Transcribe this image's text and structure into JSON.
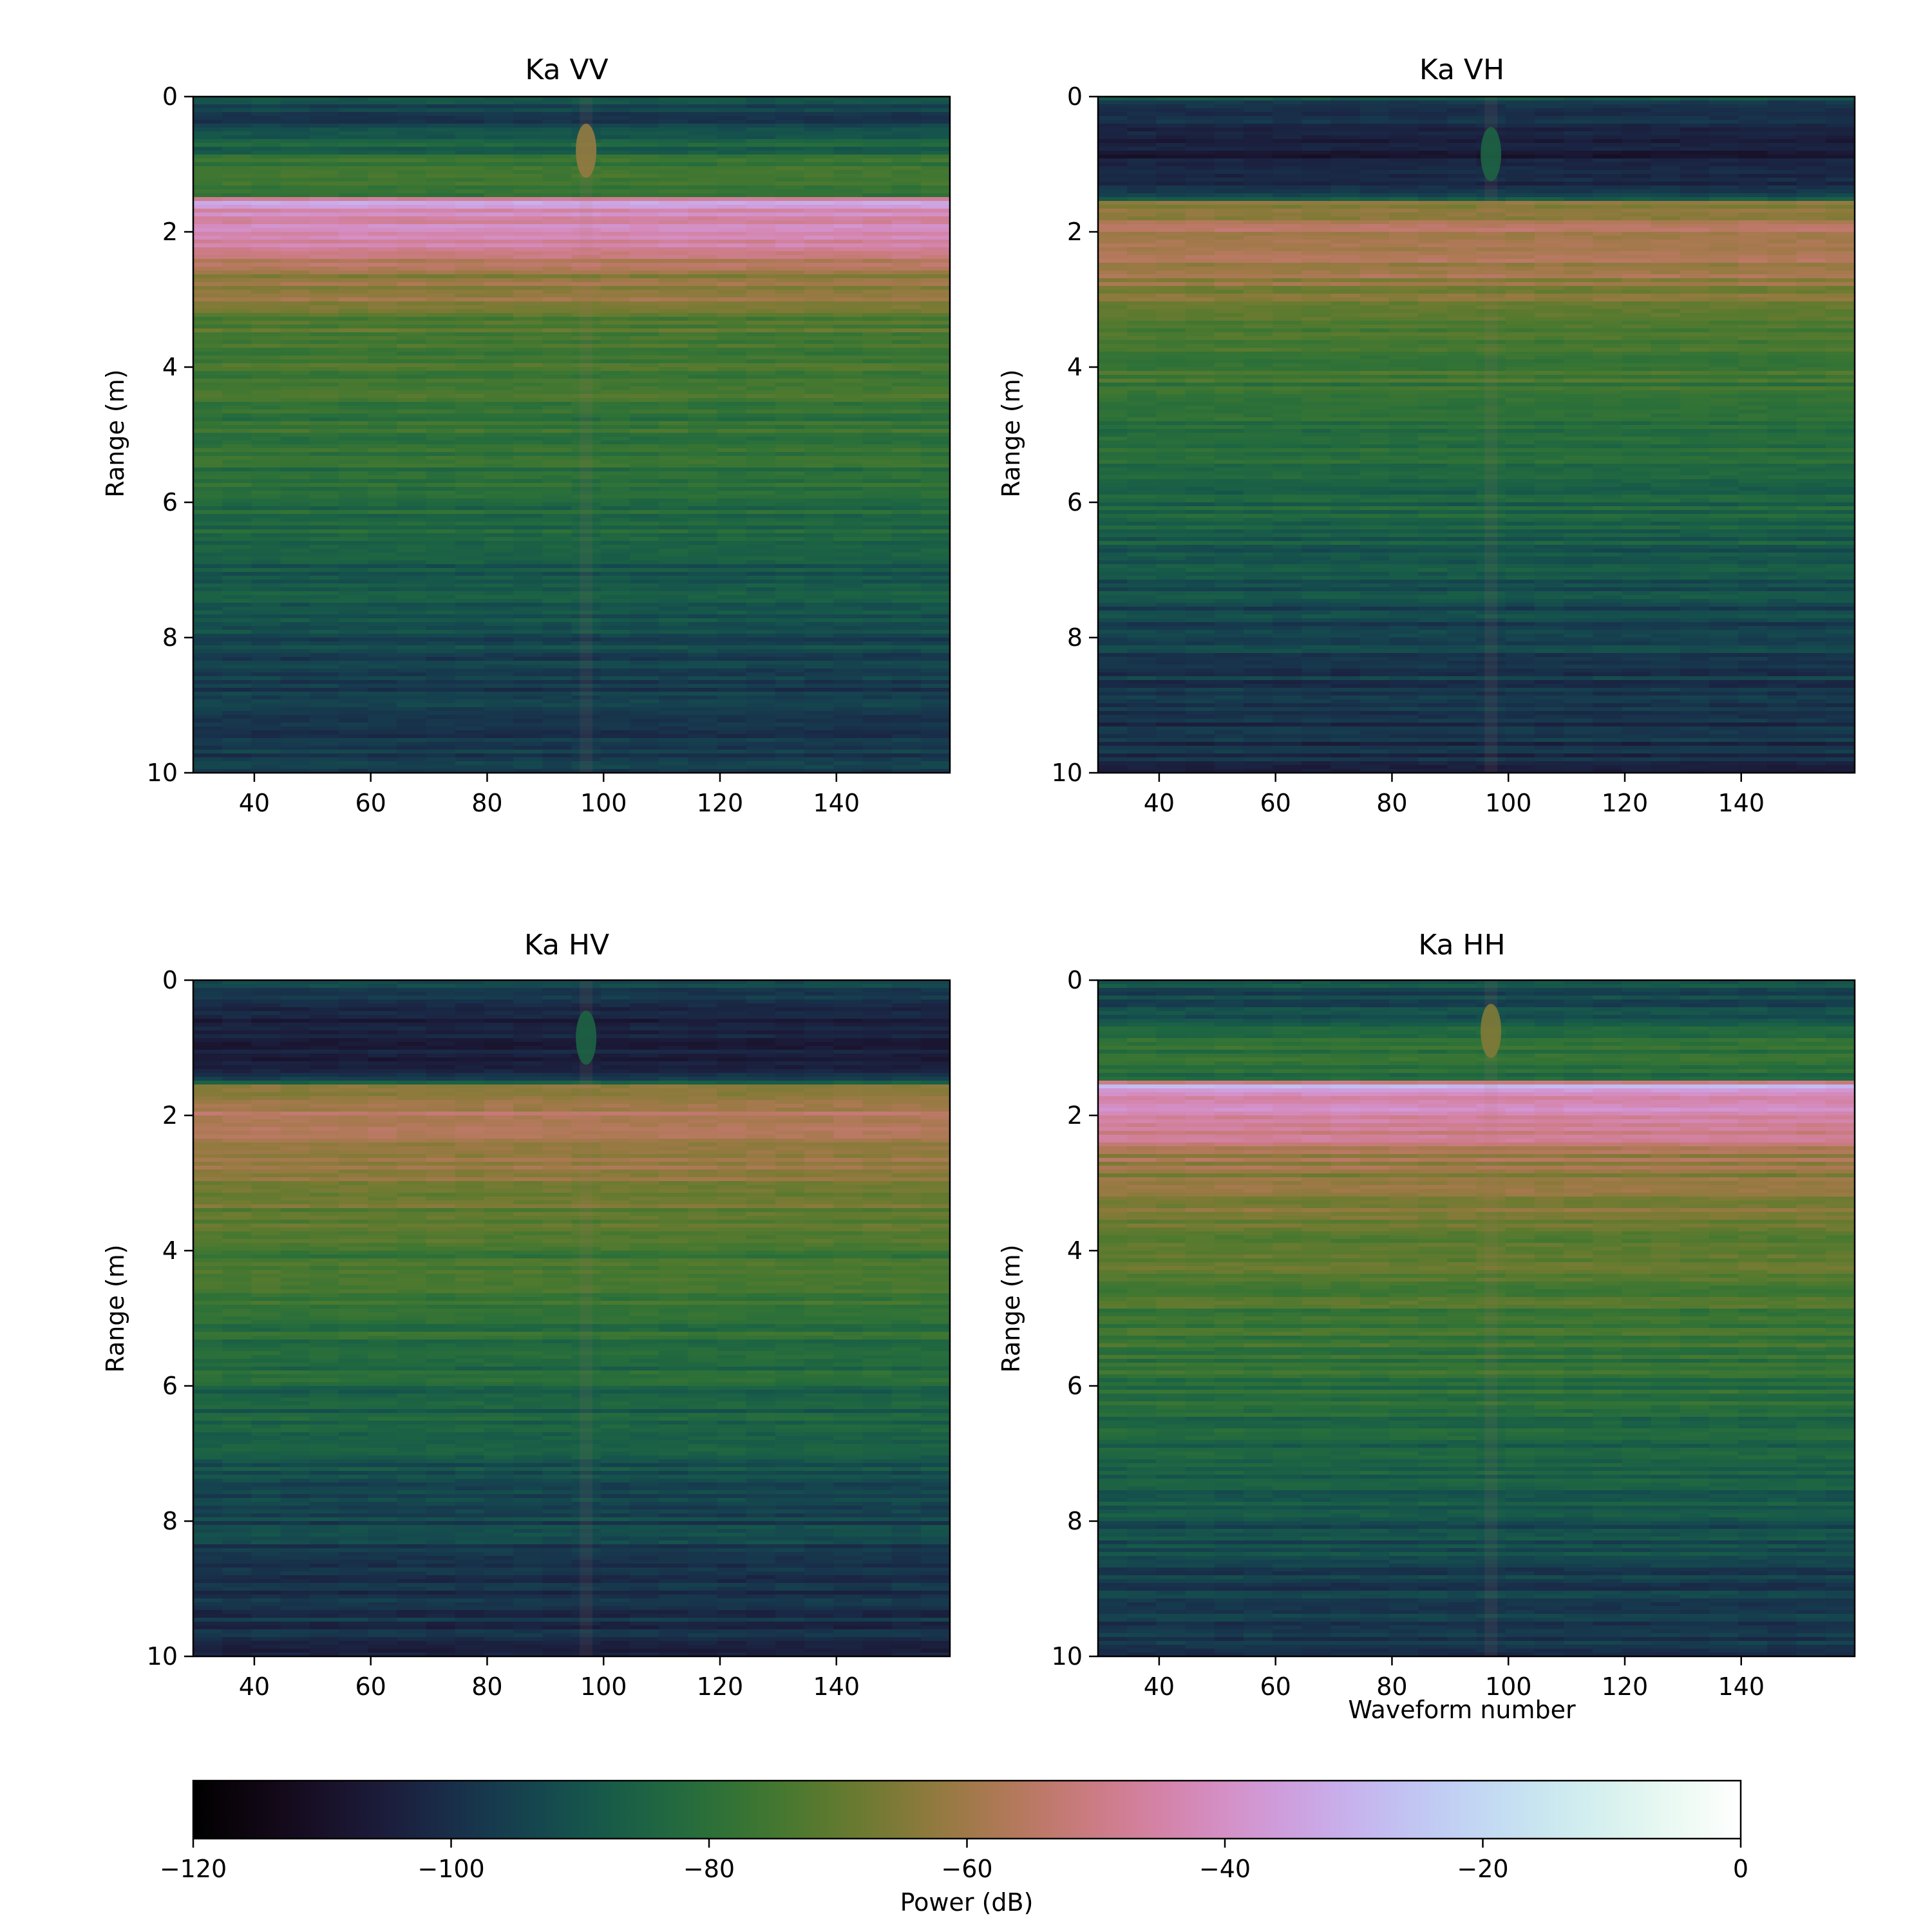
{
  "figure_title": "",
  "colorbar": {
    "label": "Power (dB)",
    "colormap": "cubehelix",
    "vmin": -120,
    "vmax": 0,
    "ticks": [
      -120,
      -100,
      -80,
      -60,
      -40,
      -20,
      0
    ],
    "tick_labels": [
      "−120",
      "−100",
      "−80",
      "−60",
      "−40",
      "−20",
      "0"
    ]
  },
  "chart_data": [
    {
      "type": "heatmap",
      "title": "Ka VV",
      "xlabel": "",
      "ylabel": "Range (m)",
      "xlim": [
        29.5,
        159.5
      ],
      "ylim": [
        10,
        0
      ],
      "xticks": [
        40,
        60,
        80,
        100,
        120,
        140
      ],
      "yticks": [
        0,
        2,
        4,
        6,
        8,
        10
      ],
      "range_profile_db": [
        [
          0.0,
          -90
        ],
        [
          0.2,
          -97
        ],
        [
          0.5,
          -95
        ],
        [
          0.9,
          -80
        ],
        [
          1.2,
          -77
        ],
        [
          1.45,
          -82
        ],
        [
          1.55,
          -28
        ],
        [
          1.7,
          -42
        ],
        [
          2.0,
          -43
        ],
        [
          2.3,
          -48
        ],
        [
          2.6,
          -62
        ],
        [
          3.0,
          -62
        ],
        [
          3.3,
          -72
        ],
        [
          4.0,
          -75
        ],
        [
          5.0,
          -79
        ],
        [
          6.0,
          -82
        ],
        [
          7.0,
          -88
        ],
        [
          8.0,
          -93
        ],
        [
          9.0,
          -98
        ],
        [
          10.0,
          -98
        ]
      ],
      "target": {
        "waveform": 97,
        "range_m": 0.8,
        "power_db": -62
      }
    },
    {
      "type": "heatmap",
      "title": "Ka VH",
      "xlabel": "",
      "ylabel": "Range (m)",
      "xlim": [
        29.5,
        159.5
      ],
      "ylim": [
        10,
        0
      ],
      "xticks": [
        40,
        60,
        80,
        100,
        120,
        140
      ],
      "yticks": [
        0,
        2,
        4,
        6,
        8,
        10
      ],
      "range_profile_db": [
        [
          0.0,
          -92
        ],
        [
          0.3,
          -100
        ],
        [
          0.6,
          -106
        ],
        [
          1.0,
          -106
        ],
        [
          1.3,
          -102
        ],
        [
          1.5,
          -96
        ],
        [
          1.55,
          -62
        ],
        [
          2.0,
          -58
        ],
        [
          2.6,
          -60
        ],
        [
          3.0,
          -68
        ],
        [
          4.0,
          -76
        ],
        [
          5.0,
          -80
        ],
        [
          6.0,
          -85
        ],
        [
          7.0,
          -90
        ],
        [
          8.0,
          -95
        ],
        [
          9.0,
          -99
        ],
        [
          10.0,
          -101
        ]
      ],
      "target": {
        "waveform": 97,
        "range_m": 0.85,
        "power_db": -85
      }
    },
    {
      "type": "heatmap",
      "title": "Ka HV",
      "xlabel": "",
      "ylabel": "Range (m)",
      "xlim": [
        29.5,
        159.5
      ],
      "ylim": [
        10,
        0
      ],
      "xticks": [
        40,
        60,
        80,
        100,
        120,
        140
      ],
      "yticks": [
        0,
        2,
        4,
        6,
        8,
        10
      ],
      "range_profile_db": [
        [
          0.0,
          -92
        ],
        [
          0.3,
          -100
        ],
        [
          0.6,
          -106
        ],
        [
          1.0,
          -106
        ],
        [
          1.3,
          -102
        ],
        [
          1.5,
          -96
        ],
        [
          1.55,
          -62
        ],
        [
          2.0,
          -57
        ],
        [
          2.6,
          -60
        ],
        [
          3.0,
          -66
        ],
        [
          4.0,
          -75
        ],
        [
          5.0,
          -79
        ],
        [
          6.0,
          -84
        ],
        [
          7.0,
          -89
        ],
        [
          8.0,
          -94
        ],
        [
          9.0,
          -99
        ],
        [
          10.0,
          -101
        ]
      ],
      "target": {
        "waveform": 97,
        "range_m": 0.85,
        "power_db": -85
      }
    },
    {
      "type": "heatmap",
      "title": "Ka HH",
      "xlabel": "Waveform number",
      "ylabel": "Range (m)",
      "xlim": [
        29.5,
        159.5
      ],
      "ylim": [
        10,
        0
      ],
      "xticks": [
        40,
        60,
        80,
        100,
        120,
        140
      ],
      "yticks": [
        0,
        2,
        4,
        6,
        8,
        10
      ],
      "range_profile_db": [
        [
          0.0,
          -88
        ],
        [
          0.2,
          -94
        ],
        [
          0.5,
          -92
        ],
        [
          0.9,
          -80
        ],
        [
          1.2,
          -77
        ],
        [
          1.45,
          -82
        ],
        [
          1.55,
          -28
        ],
        [
          1.7,
          -42
        ],
        [
          2.0,
          -43
        ],
        [
          2.3,
          -48
        ],
        [
          2.6,
          -60
        ],
        [
          3.0,
          -64
        ],
        [
          4.0,
          -70
        ],
        [
          5.0,
          -76
        ],
        [
          6.0,
          -80
        ],
        [
          7.0,
          -86
        ],
        [
          8.0,
          -91
        ],
        [
          9.0,
          -96
        ],
        [
          10.0,
          -98
        ]
      ],
      "target": {
        "waveform": 97,
        "range_m": 0.75,
        "power_db": -65
      }
    }
  ]
}
